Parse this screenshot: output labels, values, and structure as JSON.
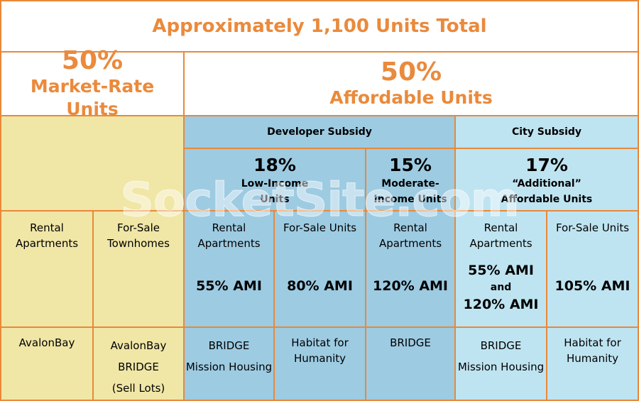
{
  "title": "Approximately 1,100 Units Total",
  "market": {
    "pct": "50%",
    "label": "Market-Rate Units"
  },
  "affordable": {
    "pct": "50%",
    "label": "Affordable Units"
  },
  "developer_subsidy": "Developer Subsidy",
  "city_subsidy": "City Subsidy",
  "low_income": {
    "pct": "18%",
    "line1": "Low-Income",
    "line2": "Units"
  },
  "moderate_income": {
    "pct": "15%",
    "line1": "Moderate-",
    "line2": "Income Units"
  },
  "additional": {
    "pct": "17%",
    "line1": "“Additional”",
    "line2": "Affordable Units"
  },
  "types": {
    "c1": [
      "Rental",
      "Apartments"
    ],
    "c2": [
      "For-Sale",
      "Townhomes"
    ],
    "c3": [
      "Rental",
      "Apartments"
    ],
    "c4": [
      "For-Sale Units"
    ],
    "c5": [
      "Rental",
      "Apartments"
    ],
    "c6": [
      "Rental",
      "Apartments"
    ],
    "c7": [
      "For-Sale Units"
    ]
  },
  "ami": {
    "c3": "55% AMI",
    "c4": "80% AMI",
    "c5": "120% AMI",
    "c6a": "55% AMI",
    "c6b": "and",
    "c6c": "120% AMI",
    "c7": "105% AMI"
  },
  "developers": {
    "c1": [
      "AvalonBay"
    ],
    "c2": [
      "AvalonBay",
      "BRIDGE",
      "(Sell Lots)"
    ],
    "c3": [
      "BRIDGE",
      "Mission Housing"
    ],
    "c4": [
      "Habitat for",
      "Humanity"
    ],
    "c5": [
      "BRIDGE"
    ],
    "c6": [
      "BRIDGE",
      "Mission Housing"
    ],
    "c7": [
      "Habitat for",
      "Humanity"
    ]
  },
  "watermark": "SocketSite.com",
  "colors": {
    "accent": "#ea8a3c",
    "border": "#e8893a",
    "market": "#f0e6a6",
    "developer": "#9dcbe2",
    "city": "#bfe4f1"
  }
}
